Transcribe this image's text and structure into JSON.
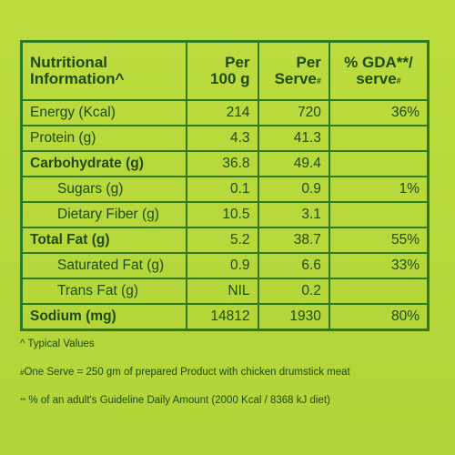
{
  "table": {
    "headers": {
      "label_line1": "Nutritional",
      "label_line2": "Information^",
      "per100_line1": "Per",
      "per100_line2": "100 g",
      "perserve_line1": "Per",
      "perserve_line2": "Serve",
      "perserve_mark": "#",
      "gda_line1": "% GDA**/",
      "gda_line2": "serve",
      "gda_mark": "#"
    },
    "rows": [
      {
        "label": "Energy (Kcal)",
        "per100": "214",
        "perserve": "720",
        "gda": "36%"
      },
      {
        "label": "Protein (g)",
        "per100": "4.3",
        "perserve": "41.3",
        "gda": ""
      },
      {
        "label": "Carbohydrate (g)",
        "per100": "36.8",
        "perserve": "49.4",
        "gda": ""
      },
      {
        "label": "Sugars (g)",
        "per100": "0.1",
        "perserve": "0.9",
        "gda": "1%"
      },
      {
        "label": "Dietary Fiber (g)",
        "per100": "10.5",
        "perserve": "3.1",
        "gda": ""
      },
      {
        "label": "Total Fat (g)",
        "per100": "5.2",
        "perserve": "38.7",
        "gda": "55%"
      },
      {
        "label": "Saturated Fat (g)",
        "per100": "0.9",
        "perserve": "6.6",
        "gda": "33%"
      },
      {
        "label": "Trans Fat (g)",
        "per100": "NIL",
        "perserve": "0.2",
        "gda": ""
      },
      {
        "label": "Sodium (mg)",
        "per100": "14812",
        "perserve": "1930",
        "gda": "80%"
      }
    ]
  },
  "notes": {
    "typical": "^ Typical Values",
    "serve_mark": "#",
    "serve": "One Serve = 250 gm of prepared Product with chicken drumstick meat",
    "gda_mark": "**",
    "gda": " % of an adult's Guideline Daily Amount (2000 Kcal / 8368 kJ diet)"
  },
  "colors": {
    "background": "#b5d53a",
    "border": "#2c7a21",
    "text": "#1f4a12"
  }
}
